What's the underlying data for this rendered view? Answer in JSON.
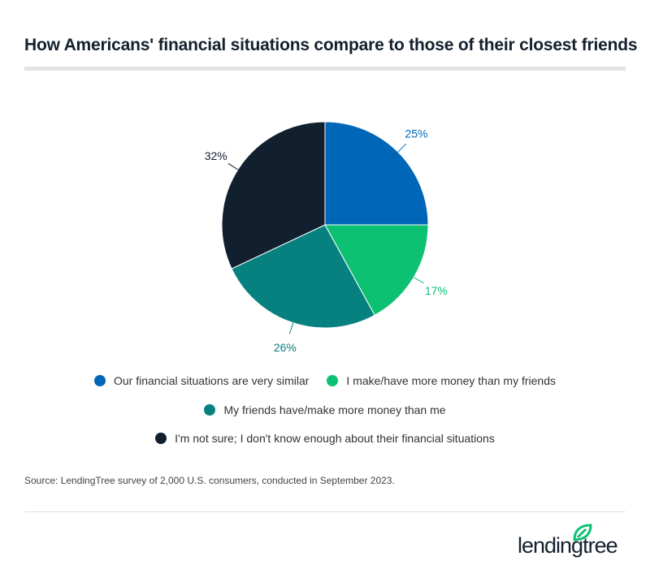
{
  "title": "How Americans' financial situations compare to those of their closest friends",
  "chart_data": {
    "type": "pie",
    "title": "How Americans' financial situations compare to those of their closest friends",
    "slices": [
      {
        "label": "Our financial situations are very similar",
        "value": 25,
        "display": "25%",
        "color": "#0066b8"
      },
      {
        "label": "I make/have more money than my friends",
        "value": 17,
        "display": "17%",
        "color": "#0dc173"
      },
      {
        "label": "My friends have/make more money than me",
        "value": 26,
        "display": "26%",
        "color": "#078180"
      },
      {
        "label": "I'm not sure; I don't know enough about their financial situations",
        "value": 32,
        "display": "32%",
        "color": "#121f2f"
      }
    ],
    "legend": "bottom"
  },
  "source": "Source: LendingTree survey of 2,000 U.S. consumers, conducted in September 2023.",
  "logo": {
    "text": "lendingtree",
    "color": "#0dc173"
  }
}
